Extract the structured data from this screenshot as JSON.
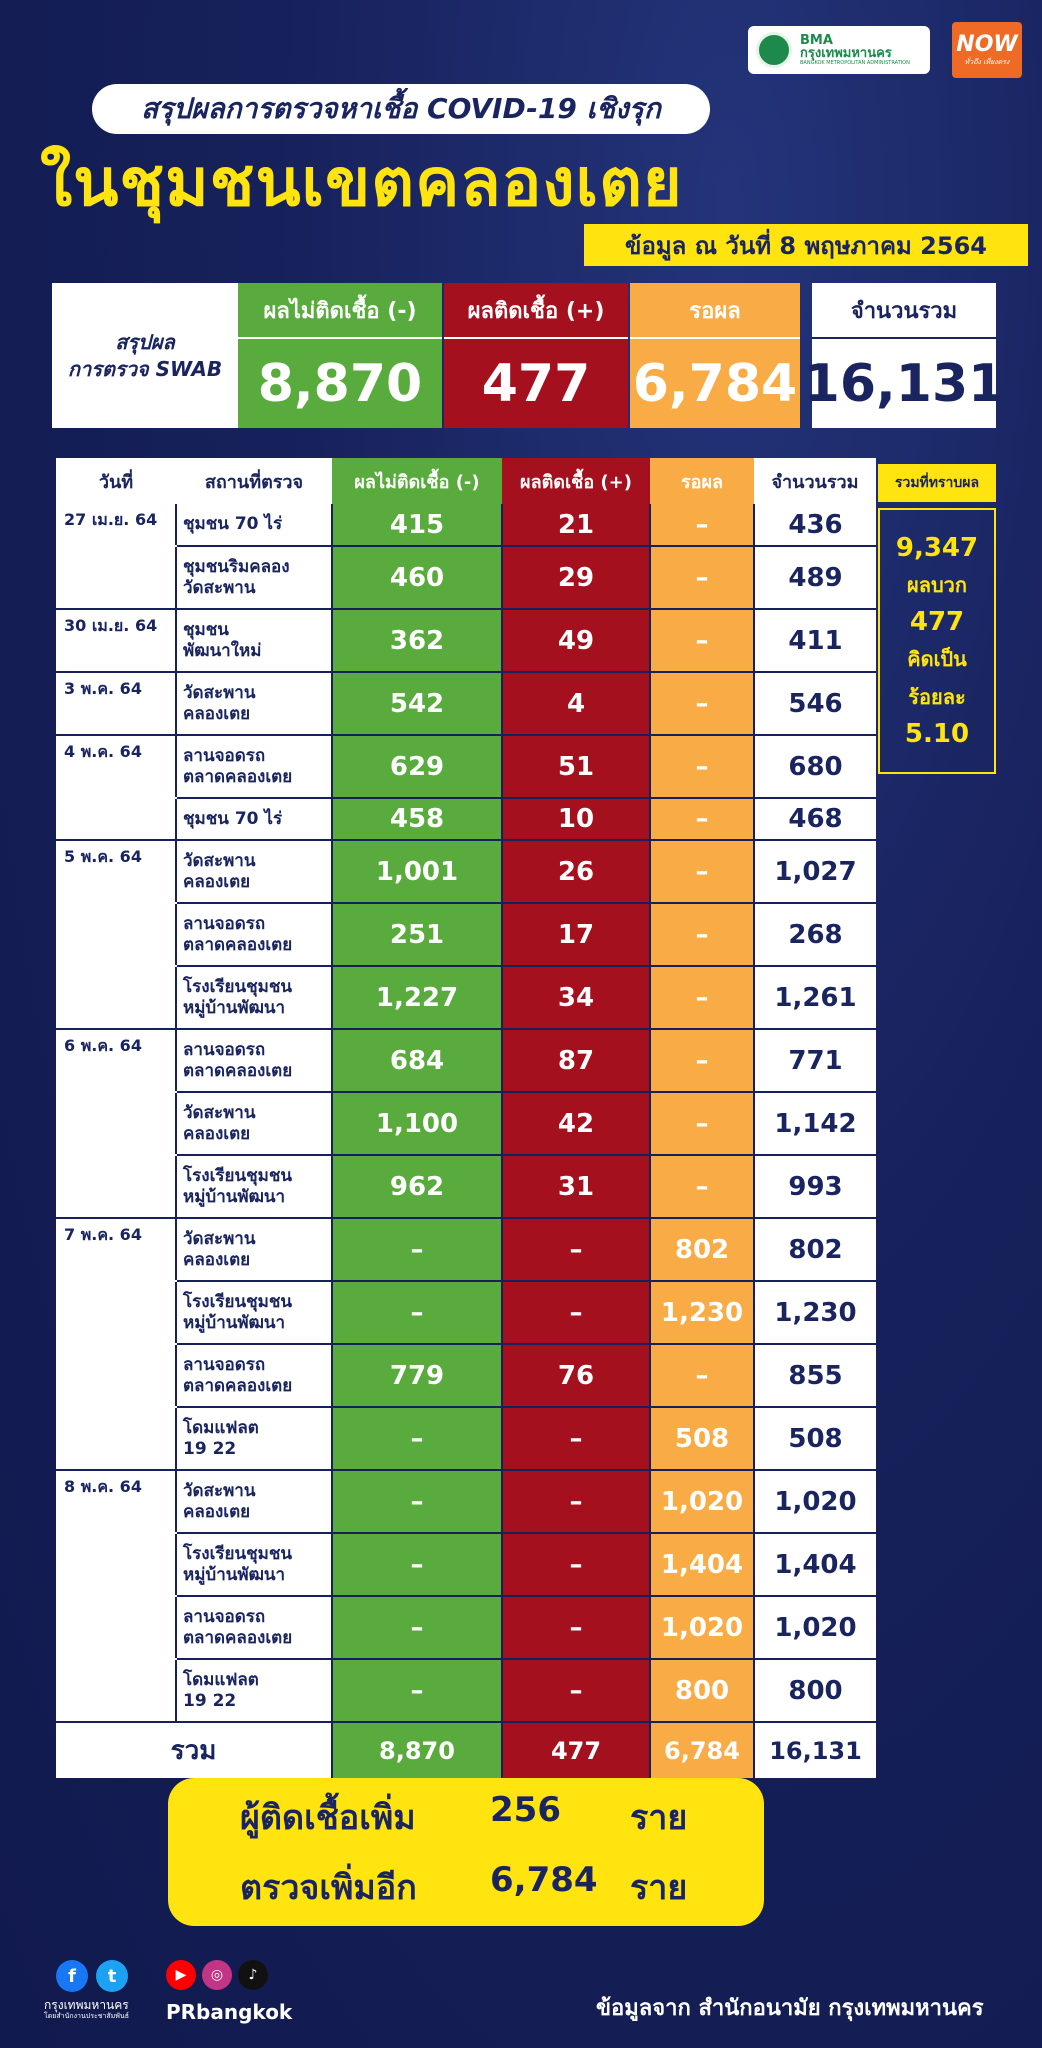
{
  "logos": {
    "bma_line1": "BMA",
    "bma_line2": "กรุงเทพมหานคร",
    "bma_line3": "BANGKOK METROPOLITAN ADMINISTRATION",
    "now_text": "NOW",
    "now_sub": "ทั่วถึง เที่ยงตรง"
  },
  "header": {
    "subtitle": "สรุปผลการตรวจหาเชื้อ COVID-19 เชิงรุก",
    "title": "ในชุมชนเขตคลองเตย",
    "date": "ข้อมูล ณ วันที่ 8 พฤษภาคม 2564"
  },
  "summary": {
    "label_line1": "สรุปผล",
    "label_line2": "การตรวจ SWAB",
    "neg_label": "ผลไม่ติดเชื้อ (-)",
    "neg_value": "8,870",
    "pos_label": "ผลติดเชื้อ (+)",
    "pos_value": "477",
    "wait_label": "รอผล",
    "wait_value": "6,784",
    "total_label": "จำนวนรวม",
    "total_value": "16,131"
  },
  "table": {
    "headers": {
      "date": "วันที่",
      "location": "สถานที่ตรวจ",
      "neg": "ผลไม่ติดเชื้อ (-)",
      "pos": "ผลติดเชื้อ (+)",
      "wait": "รอผล",
      "total": "จำนวนรวม"
    },
    "rows": [
      {
        "date": "27 เม.ย. 64",
        "loc1": "ชุมชน 70 ไร่",
        "loc2": "",
        "neg": "415",
        "pos": "21",
        "wait": "–",
        "total": "436"
      },
      {
        "date": "",
        "loc1": "ชุมชนริมคลอง",
        "loc2": "วัดสะพาน",
        "neg": "460",
        "pos": "29",
        "wait": "–",
        "total": "489"
      },
      {
        "date": "30 เม.ย. 64",
        "loc1": "ชุมชน",
        "loc2": "พัฒนาใหม่",
        "neg": "362",
        "pos": "49",
        "wait": "–",
        "total": "411"
      },
      {
        "date": "3 พ.ค. 64",
        "loc1": "วัดสะพาน",
        "loc2": "คลองเตย",
        "neg": "542",
        "pos": "4",
        "wait": "–",
        "total": "546"
      },
      {
        "date": "4 พ.ค. 64",
        "loc1": "ลานจอดรถ",
        "loc2": "ตลาดคลองเตย",
        "neg": "629",
        "pos": "51",
        "wait": "–",
        "total": "680"
      },
      {
        "date": "",
        "loc1": "ชุมชน 70 ไร่",
        "loc2": "",
        "neg": "458",
        "pos": "10",
        "wait": "–",
        "total": "468"
      },
      {
        "date": "5 พ.ค. 64",
        "loc1": "วัดสะพาน",
        "loc2": "คลองเตย",
        "neg": "1,001",
        "pos": "26",
        "wait": "–",
        "total": "1,027"
      },
      {
        "date": "",
        "loc1": "ลานจอดรถ",
        "loc2": "ตลาดคลองเตย",
        "neg": "251",
        "pos": "17",
        "wait": "–",
        "total": "268"
      },
      {
        "date": "",
        "loc1": "โรงเรียนชุมชน",
        "loc2": "หมู่บ้านพัฒนา",
        "neg": "1,227",
        "pos": "34",
        "wait": "–",
        "total": "1,261"
      },
      {
        "date": "6 พ.ค. 64",
        "loc1": "ลานจอดรถ",
        "loc2": "ตลาดคลองเตย",
        "neg": "684",
        "pos": "87",
        "wait": "–",
        "total": "771"
      },
      {
        "date": "",
        "loc1": "วัดสะพาน",
        "loc2": "คลองเตย",
        "neg": "1,100",
        "pos": "42",
        "wait": "–",
        "total": "1,142"
      },
      {
        "date": "",
        "loc1": "โรงเรียนชุมชน",
        "loc2": "หมู่บ้านพัฒนา",
        "neg": "962",
        "pos": "31",
        "wait": "–",
        "total": "993"
      },
      {
        "date": "7 พ.ค. 64",
        "loc1": "วัดสะพาน",
        "loc2": "คลองเตย",
        "neg": "–",
        "pos": "–",
        "wait": "802",
        "total": "802"
      },
      {
        "date": "",
        "loc1": "โรงเรียนชุมชน",
        "loc2": "หมู่บ้านพัฒนา",
        "neg": "–",
        "pos": "–",
        "wait": "1,230",
        "total": "1,230"
      },
      {
        "date": "",
        "loc1": "ลานจอดรถ",
        "loc2": "ตลาดคลองเตย",
        "neg": "779",
        "pos": "76",
        "wait": "–",
        "total": "855"
      },
      {
        "date": "",
        "loc1": "โดมแฟลต",
        "loc2": "19 22",
        "neg": "–",
        "pos": "–",
        "wait": "508",
        "total": "508"
      },
      {
        "date": "8 พ.ค. 64",
        "loc1": "วัดสะพาน",
        "loc2": "คลองเตย",
        "neg": "–",
        "pos": "–",
        "wait": "1,020",
        "total": "1,020"
      },
      {
        "date": "",
        "loc1": "โรงเรียนชุมชน",
        "loc2": "หมู่บ้านพัฒนา",
        "neg": "–",
        "pos": "–",
        "wait": "1,404",
        "total": "1,404"
      },
      {
        "date": "",
        "loc1": "ลานจอดรถ",
        "loc2": "ตลาดคลองเตย",
        "neg": "–",
        "pos": "–",
        "wait": "1,020",
        "total": "1,020"
      },
      {
        "date": "",
        "loc1": "โดมแฟลต",
        "loc2": "19 22",
        "neg": "–",
        "pos": "–",
        "wait": "800",
        "total": "800"
      }
    ],
    "total_row": {
      "label": "รวม",
      "neg": "8,870",
      "pos": "477",
      "wait": "6,784",
      "total": "16,131"
    }
  },
  "side": {
    "header": "รวมที่ทราบผล",
    "known_total": "9,347",
    "positive_label": "ผลบวก",
    "positive_value": "477",
    "percent_label_1": "คิดเป็น",
    "percent_label_2": "ร้อยละ",
    "percent_value": "5.10"
  },
  "bottom": {
    "line1_label": "ผู้ติดเชื้อเพิ่ม",
    "line1_value": "256",
    "line1_unit": "ราย",
    "line2_label": "ตรวจเพิ่มอีก",
    "line2_value": "6,784",
    "line2_unit": "ราย"
  },
  "footer": {
    "org_name": "กรุงเทพมหานคร",
    "org_sub": "โดยสำนักงานประชาสัมพันธ์",
    "social_handle": "PRbangkok",
    "source": "ข้อมูลจาก สำนักอนามัย กรุงเทพมหานคร"
  }
}
